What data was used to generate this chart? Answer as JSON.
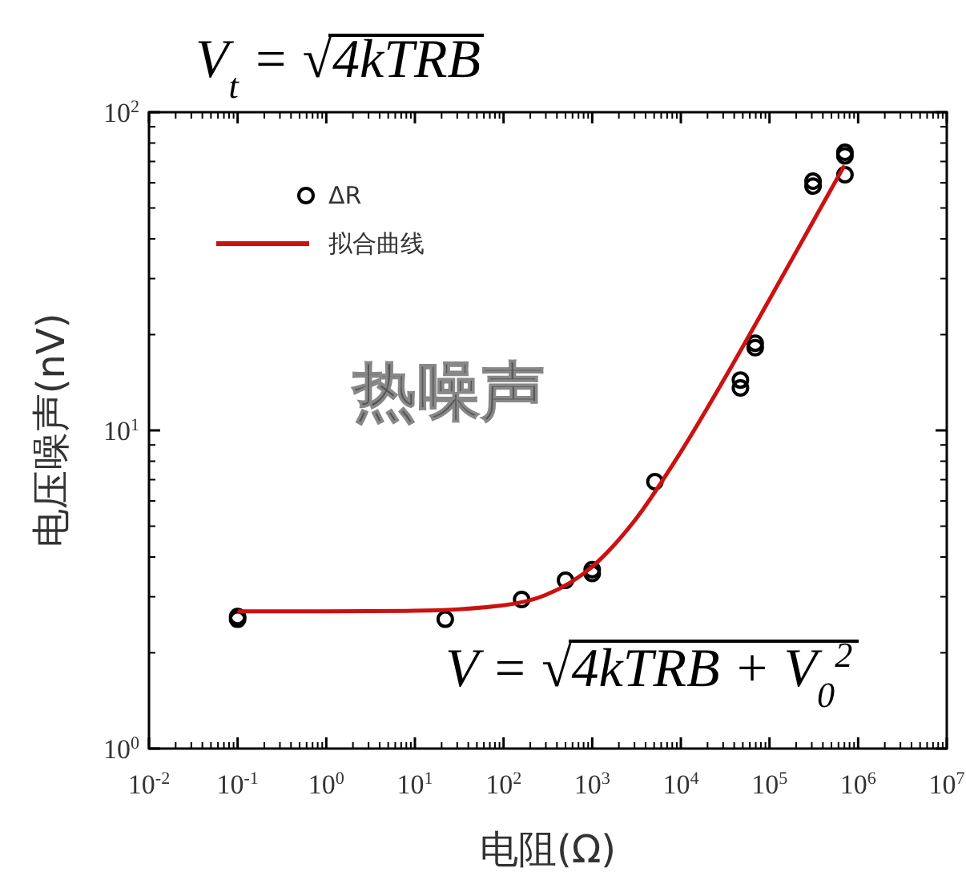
{
  "chart_data": {
    "type": "scatter",
    "title": "V$_{t}$ = √4kTRB",
    "xlabel": "电阻(Ω)",
    "ylabel": "电压噪声(nV)",
    "log": "xy",
    "grid": false,
    "legend": "top left",
    "xlim": [
      0.01,
      10000000
    ],
    "ylim": [
      1,
      100
    ],
    "xticks": [
      {
        "value": 0.01,
        "label": "10$^{-2}$"
      },
      {
        "value": 0.1,
        "label": "10$^{-1}$"
      },
      {
        "value": 1,
        "label": "10$^{0}$"
      },
      {
        "value": 10,
        "label": "10$^{1}$"
      },
      {
        "value": 100,
        "label": "10$^{2}$"
      },
      {
        "value": 1000,
        "label": "10$^{3}$"
      },
      {
        "value": 10000,
        "label": "10$^{4}$"
      },
      {
        "value": 100000,
        "label": "10$^{5}$"
      },
      {
        "value": 1000000,
        "label": "10$^{6}$"
      },
      {
        "value": 10000000,
        "label": "10$^{7}$"
      }
    ],
    "yticks": [
      {
        "value": 1,
        "label": "10$^{0}$"
      },
      {
        "value": 10,
        "label": "10$^{1}$"
      },
      {
        "value": 100,
        "label": "10$^{2}$"
      }
    ],
    "annotations": [
      "热噪声",
      "V = √4kTRB + V$_{0}$$^{2}$"
    ],
    "series": [
      {
        "name": "ΔR",
        "marker": "circle",
        "color": "#000000",
        "x": [
          0.1,
          0.1,
          22,
          160,
          500,
          1000,
          1000,
          5100,
          47000,
          47000,
          69000,
          69000,
          310000,
          310000,
          710000,
          710000,
          710000
        ],
        "values": [
          2.55,
          2.6,
          2.55,
          2.94,
          3.38,
          3.55,
          3.65,
          6.9,
          14.4,
          13.6,
          18.8,
          18.2,
          60.7,
          58.6,
          74.8,
          72.9,
          63.6
        ]
      },
      {
        "name": "拟合曲线",
        "type": "line",
        "marker": "none",
        "line_style": "solid",
        "color": "#cc1111",
        "x": [
          0.1,
          1,
          10,
          100,
          300,
          1000,
          3000,
          10000,
          30000,
          100000,
          300000,
          700000
        ],
        "values": [
          2.7,
          2.7,
          2.71,
          2.82,
          3.04,
          3.73,
          5.2,
          8.56,
          14.3,
          25.8,
          44.6,
          68.0
        ]
      }
    ]
  }
}
